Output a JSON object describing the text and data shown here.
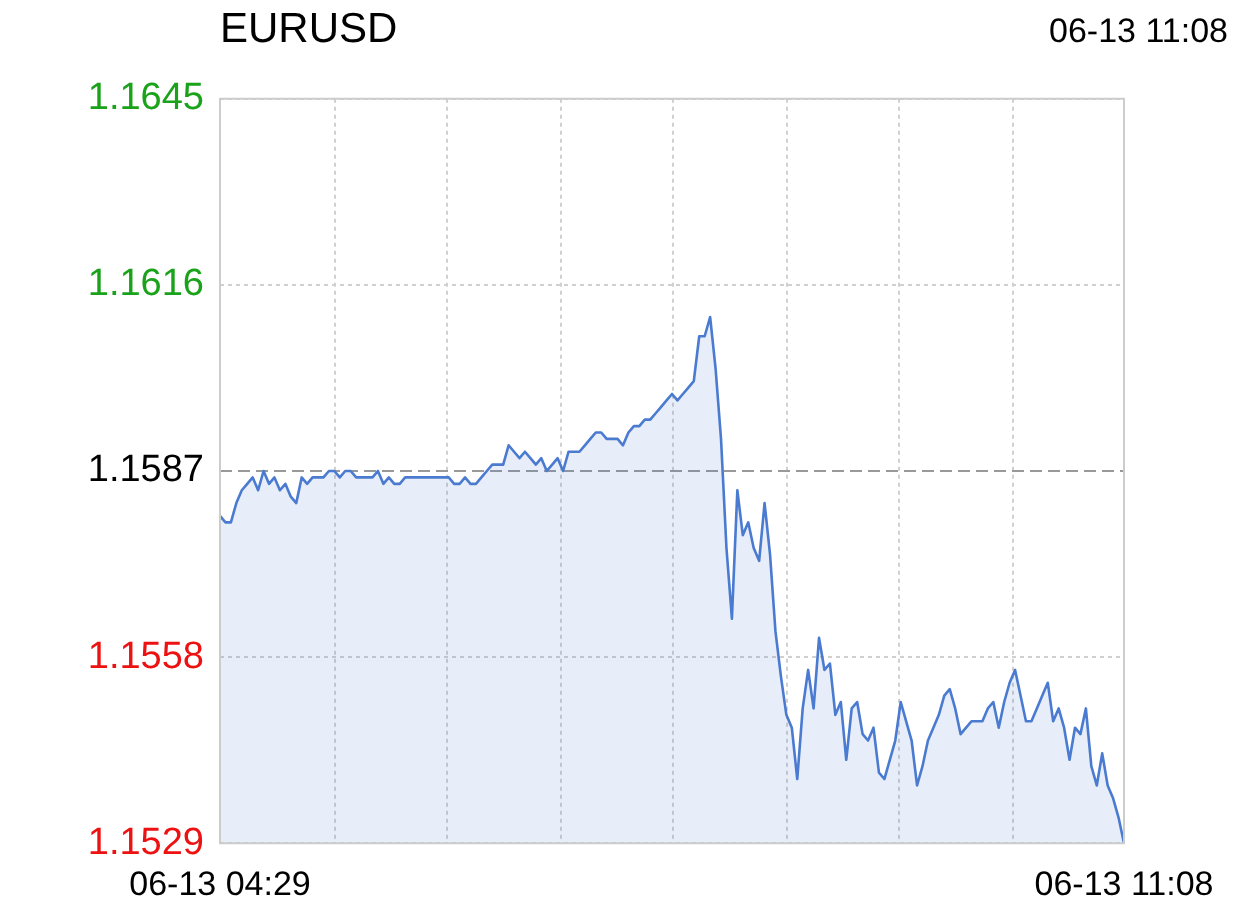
{
  "chart_data": {
    "type": "area",
    "title": "EURUSD",
    "subtitle": "06-13 11:08",
    "categories": [
      "06-13 04:29",
      null,
      null,
      null,
      null,
      null,
      null,
      null,
      null,
      null,
      null,
      null,
      null,
      null,
      null,
      null,
      null,
      null,
      null,
      null,
      null,
      null,
      null,
      null,
      null,
      null,
      null,
      null,
      null,
      null,
      null,
      null,
      null,
      null,
      null,
      null,
      null,
      null,
      null,
      null,
      null,
      null,
      null,
      null,
      null,
      null,
      null,
      null,
      null,
      null,
      null,
      null,
      null,
      null,
      null,
      null,
      null,
      null,
      null,
      null,
      null,
      null,
      null,
      null,
      null,
      null,
      null,
      null,
      null,
      null,
      null,
      null,
      null,
      null,
      null,
      null,
      null,
      null,
      null,
      null,
      null,
      null,
      null,
      null,
      null,
      null,
      null,
      null,
      null,
      null,
      null,
      null,
      null,
      null,
      null,
      null,
      null,
      null,
      null,
      null,
      null,
      null,
      null,
      null,
      null,
      null,
      null,
      null,
      null,
      null,
      null,
      null,
      null,
      null,
      null,
      null,
      null,
      null,
      null,
      null,
      null,
      null,
      null,
      null,
      null,
      null,
      null,
      null,
      null,
      null,
      null,
      null,
      null,
      null,
      null,
      null,
      null,
      null,
      null,
      null,
      null,
      null,
      null,
      null,
      null,
      null,
      null,
      null,
      null,
      null,
      null,
      null,
      null,
      null,
      null,
      null,
      null,
      null,
      null,
      null,
      null,
      null,
      null,
      null,
      null,
      null,
      "06-13 11:08"
    ],
    "series": [
      {
        "color": "#4a7bd0",
        "values": [
          1.158,
          1.1579,
          1.1579,
          1.1582,
          1.1584,
          1.1585,
          1.1586,
          1.1584,
          1.1587,
          1.1585,
          1.1586,
          1.1584,
          1.1585,
          1.1583,
          1.1582,
          1.1586,
          1.1585,
          1.1586,
          1.1586,
          1.1586,
          1.1587,
          1.1587,
          1.1586,
          1.1587,
          1.1587,
          1.1586,
          1.1586,
          1.1586,
          1.1586,
          1.1587,
          1.1585,
          1.1586,
          1.1585,
          1.1585,
          1.1586,
          1.1586,
          1.1586,
          1.1586,
          1.1586,
          1.1586,
          1.1586,
          1.1586,
          1.1586,
          1.1585,
          1.1585,
          1.1586,
          1.1585,
          1.1585,
          1.1586,
          1.1587,
          1.1588,
          1.1588,
          1.1588,
          1.1591,
          1.159,
          1.1589,
          1.159,
          1.1589,
          1.1588,
          1.1589,
          1.1587,
          1.1588,
          1.1589,
          1.1587,
          1.159,
          1.159,
          1.159,
          1.1591,
          1.1592,
          1.1593,
          1.1593,
          1.1592,
          1.1592,
          1.1592,
          1.1591,
          1.1593,
          1.1594,
          1.1594,
          1.1595,
          1.1595,
          1.1596,
          1.1597,
          1.1598,
          1.1599,
          1.1598,
          1.1599,
          1.16,
          1.1601,
          1.1608,
          1.1608,
          1.1611,
          1.1603,
          1.1592,
          1.1575,
          1.1564,
          1.1584,
          1.1577,
          1.1579,
          1.1575,
          1.1573,
          1.1582,
          1.1574,
          1.1562,
          1.1555,
          1.1549,
          1.1547,
          1.1539,
          1.155,
          1.1556,
          1.155,
          1.1561,
          1.1556,
          1.1557,
          1.1549,
          1.1551,
          1.1542,
          1.155,
          1.1551,
          1.1546,
          1.1545,
          1.1547,
          1.154,
          1.1539,
          1.1542,
          1.1545,
          1.1551,
          1.1548,
          1.1545,
          1.1538,
          1.1541,
          1.1545,
          1.1547,
          1.1549,
          1.1552,
          1.1553,
          1.155,
          1.1546,
          1.1547,
          1.1548,
          1.1548,
          1.1548,
          1.155,
          1.1551,
          1.1547,
          1.1551,
          1.1554,
          1.1556,
          1.1552,
          1.1548,
          1.1548,
          1.155,
          1.1552,
          1.1554,
          1.1548,
          1.155,
          1.1547,
          1.1542,
          1.1547,
          1.1546,
          1.155,
          1.1541,
          1.1538,
          1.1543,
          1.1538,
          1.1536,
          1.1533,
          1.1529
        ]
      }
    ],
    "ylim": [
      1.1529,
      1.1645
    ],
    "yticks": [
      1.1529,
      1.1558,
      1.1587,
      1.1616,
      1.1645
    ],
    "grid": true,
    "marker": "none",
    "ref_lines": [
      {
        "axis": "y",
        "value": 1.1587,
        "line_style": "dashed",
        "color": "#999999"
      }
    ]
  }
}
